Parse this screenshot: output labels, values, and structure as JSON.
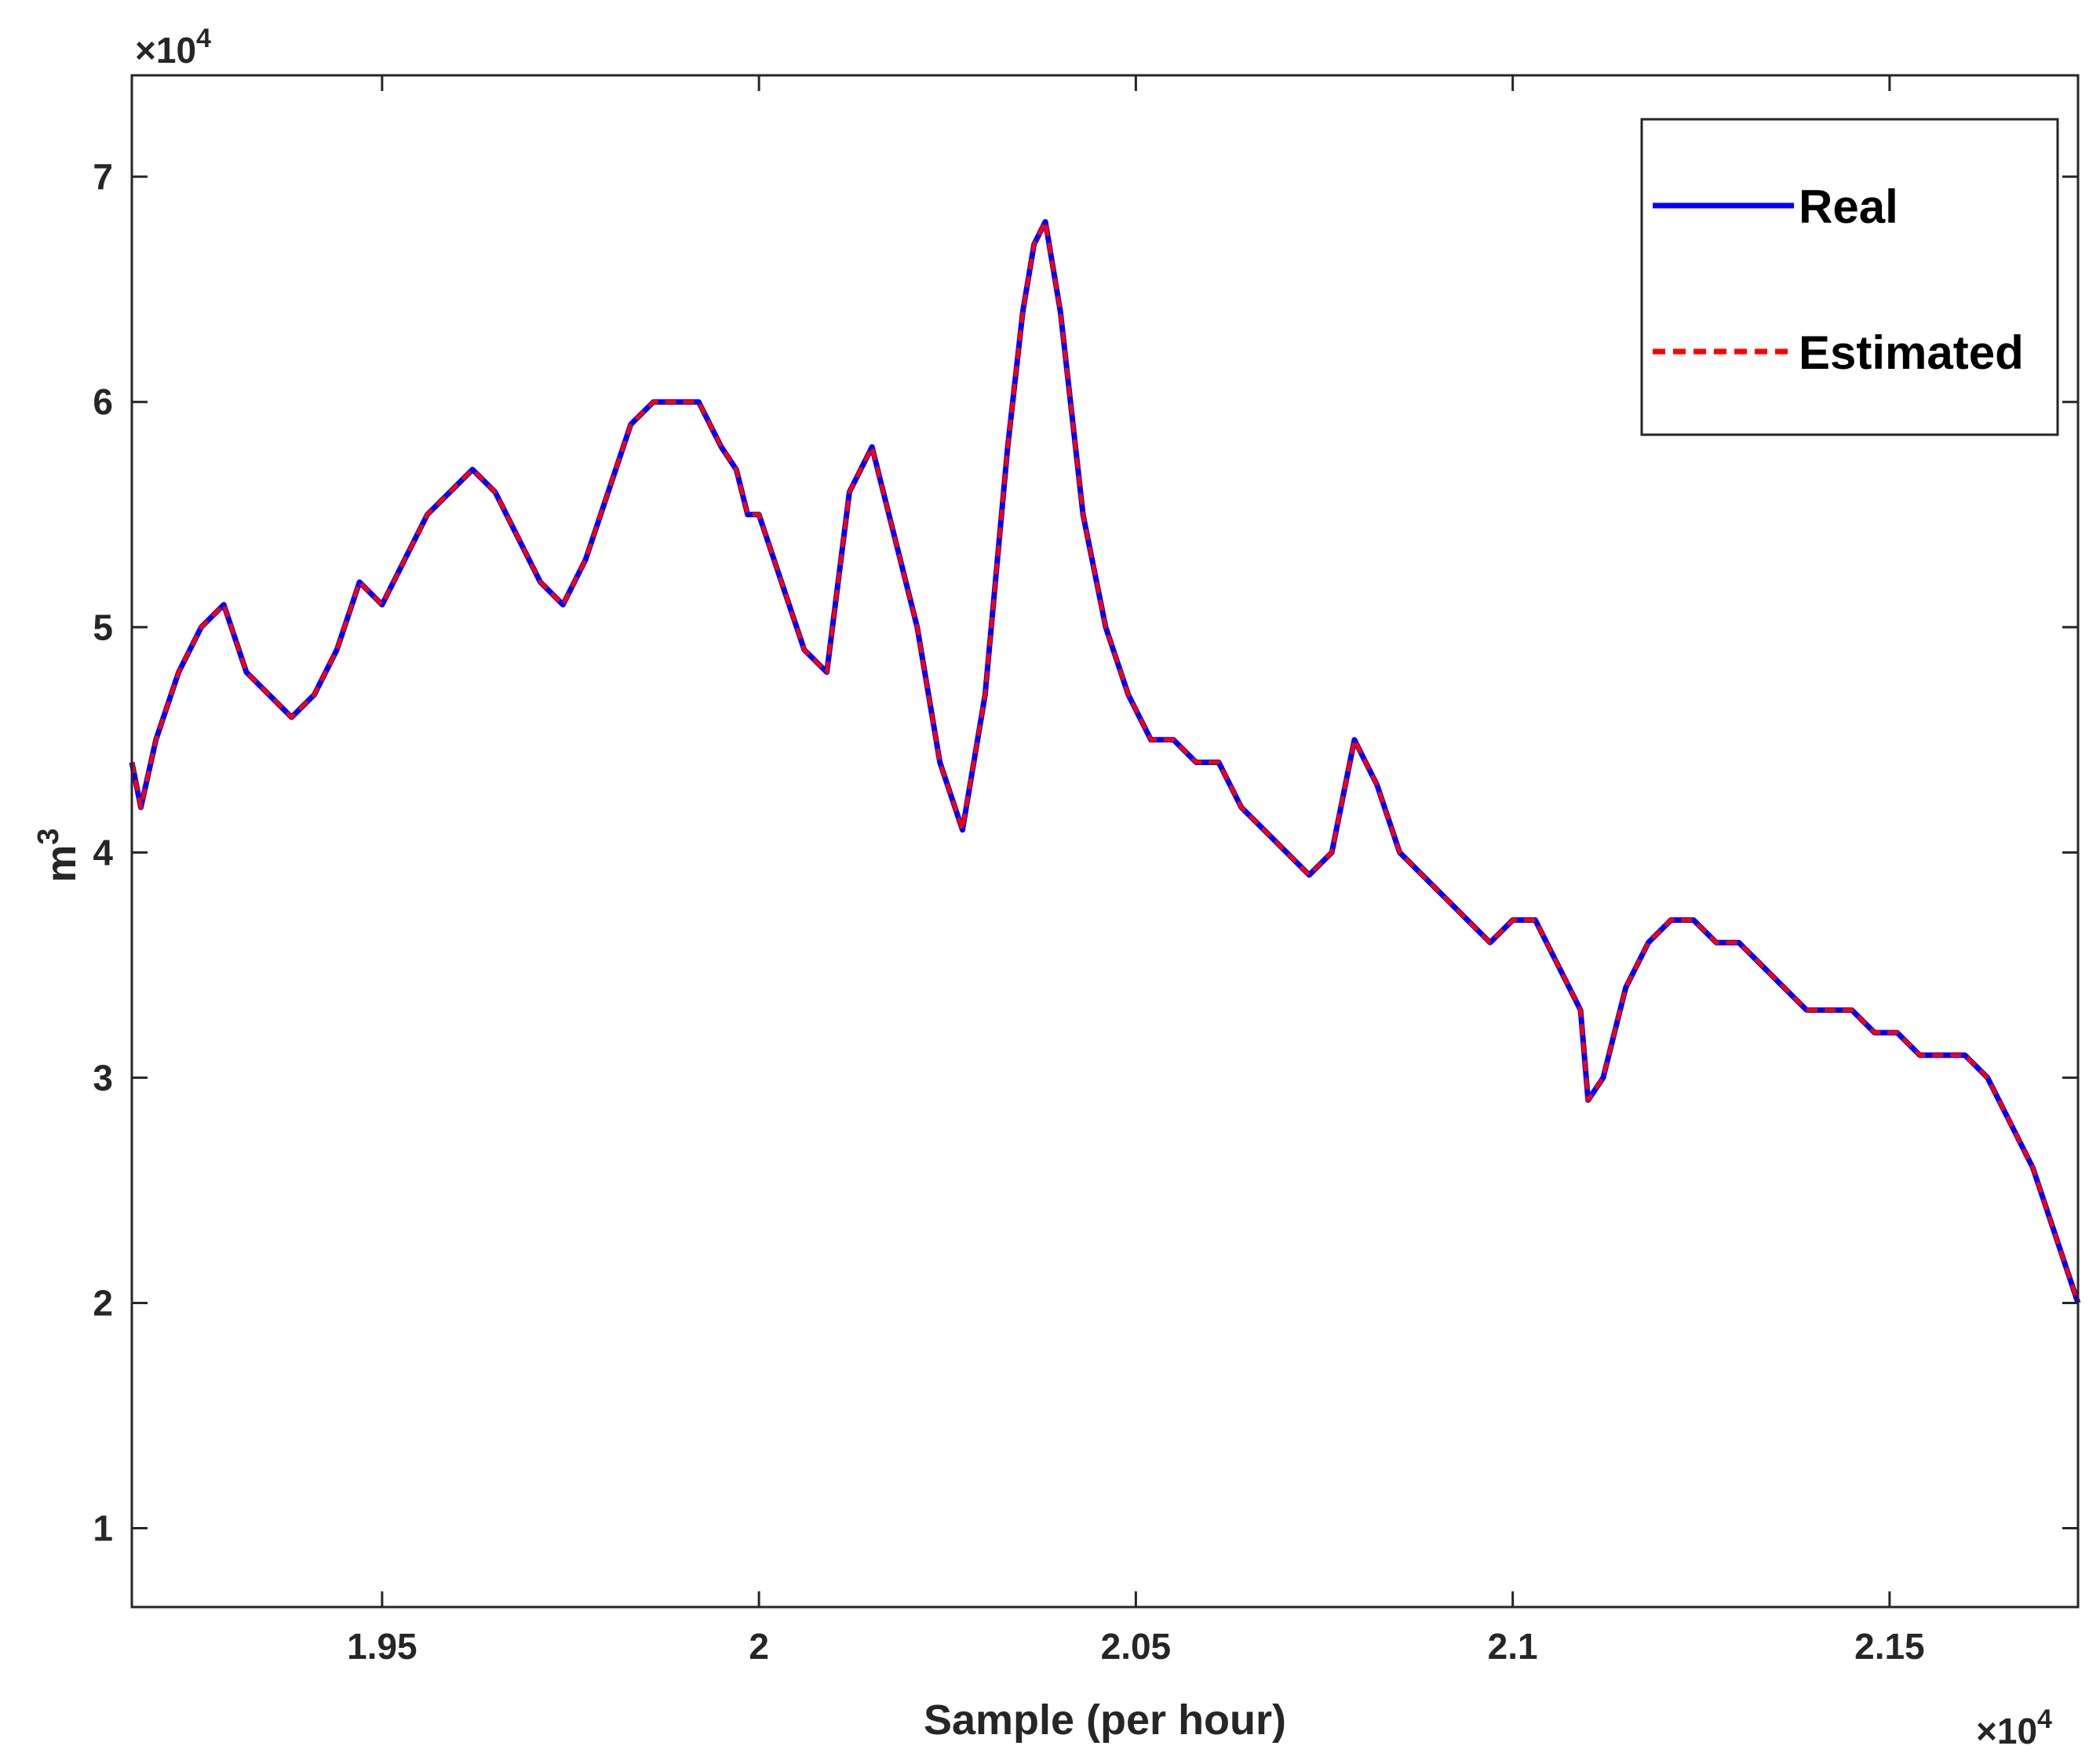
{
  "chart_data": {
    "type": "line",
    "xlabel": "Sample (per hour)",
    "ylabel": "m",
    "ylabel_superscript": "3",
    "x_exponent_label": "×10",
    "x_exponent_power": "4",
    "y_exponent_label": "×10",
    "y_exponent_power": "4",
    "xlim": [
      19168,
      21750
    ],
    "ylim": [
      6500,
      74500
    ],
    "xticks": [
      19500,
      20000,
      20500,
      21000,
      21500
    ],
    "xtick_labels": [
      "1.95",
      "2",
      "2.05",
      "2.1",
      "2.15"
    ],
    "yticks": [
      10000,
      20000,
      30000,
      40000,
      50000,
      60000,
      70000
    ],
    "ytick_labels": [
      "1",
      "2",
      "3",
      "4",
      "5",
      "6",
      "7"
    ],
    "grid": false,
    "legend_position": "top-right",
    "series": [
      {
        "name": "Real",
        "color": "#0000ff",
        "style": "solid",
        "x": [
          19168,
          19180,
          19200,
          19230,
          19260,
          19290,
          19320,
          19350,
          19380,
          19410,
          19440,
          19470,
          19500,
          19530,
          19560,
          19590,
          19620,
          19650,
          19680,
          19710,
          19740,
          19770,
          19800,
          19830,
          19860,
          19890,
          19920,
          19950,
          19970,
          19985,
          20000,
          20030,
          20060,
          20090,
          20120,
          20150,
          20180,
          20210,
          20240,
          20270,
          20300,
          20330,
          20350,
          20365,
          20380,
          20400,
          20430,
          20460,
          20490,
          20520,
          20550,
          20580,
          20610,
          20640,
          20670,
          20700,
          20730,
          20760,
          20790,
          20820,
          20850,
          20880,
          20910,
          20940,
          20970,
          21000,
          21030,
          21060,
          21090,
          21100,
          21120,
          21150,
          21180,
          21210,
          21240,
          21270,
          21300,
          21330,
          21360,
          21390,
          21420,
          21450,
          21480,
          21510,
          21540,
          21570,
          21600,
          21630,
          21660,
          21690,
          21720,
          21750
        ],
        "y": [
          44000,
          42000,
          45000,
          48000,
          50000,
          51000,
          48000,
          47000,
          46000,
          47000,
          49000,
          52000,
          51000,
          53000,
          55000,
          56000,
          57000,
          56000,
          54000,
          52000,
          51000,
          53000,
          56000,
          59000,
          60000,
          60000,
          60000,
          58000,
          57000,
          55000,
          55000,
          52000,
          49000,
          48000,
          56000,
          58000,
          54000,
          50000,
          44000,
          41000,
          47000,
          58000,
          64000,
          67000,
          68000,
          64000,
          55000,
          50000,
          47000,
          45000,
          45000,
          44000,
          44000,
          42000,
          41000,
          40000,
          39000,
          40000,
          45000,
          43000,
          40000,
          39000,
          38000,
          37000,
          36000,
          37000,
          37000,
          35000,
          33000,
          29000,
          30000,
          34000,
          36000,
          37000,
          37000,
          36000,
          36000,
          35000,
          34000,
          33000,
          33000,
          33000,
          32000,
          32000,
          31000,
          31000,
          31000,
          30000,
          28000,
          26000,
          23000,
          20000
        ]
      },
      {
        "name": "Estimated",
        "color": "#ff0000",
        "style": "dashed",
        "x": [
          19168,
          19180,
          19200,
          19230,
          19260,
          19290,
          19320,
          19350,
          19380,
          19410,
          19440,
          19470,
          19500,
          19530,
          19560,
          19590,
          19620,
          19650,
          19680,
          19710,
          19740,
          19770,
          19800,
          19830,
          19860,
          19890,
          19920,
          19950,
          19970,
          19985,
          20000,
          20030,
          20060,
          20090,
          20120,
          20150,
          20180,
          20210,
          20240,
          20270,
          20300,
          20330,
          20350,
          20365,
          20380,
          20400,
          20430,
          20460,
          20490,
          20520,
          20550,
          20580,
          20610,
          20640,
          20670,
          20700,
          20730,
          20760,
          20790,
          20820,
          20850,
          20880,
          20910,
          20940,
          20970,
          21000,
          21030,
          21060,
          21090,
          21100,
          21120,
          21150,
          21180,
          21210,
          21240,
          21270,
          21300,
          21330,
          21360,
          21390,
          21420,
          21450,
          21480,
          21510,
          21540,
          21570,
          21600,
          21630,
          21660,
          21690,
          21720,
          21750
        ],
        "y": [
          44000,
          42000,
          45000,
          48000,
          50000,
          51000,
          48000,
          47000,
          46000,
          47000,
          49000,
          52000,
          51000,
          53000,
          55000,
          56000,
          57000,
          56000,
          54000,
          52000,
          51000,
          53000,
          56000,
          59000,
          60000,
          60000,
          60000,
          58000,
          57000,
          55000,
          55000,
          52000,
          49000,
          48000,
          56000,
          58000,
          54000,
          50000,
          44000,
          41000,
          47000,
          58000,
          64000,
          67000,
          68000,
          64000,
          55000,
          50000,
          47000,
          45000,
          45000,
          44000,
          44000,
          42000,
          41000,
          40000,
          39000,
          40000,
          45000,
          43000,
          40000,
          39000,
          38000,
          37000,
          36000,
          37000,
          37000,
          35000,
          33000,
          29000,
          30000,
          34000,
          36000,
          37000,
          37000,
          36000,
          36000,
          35000,
          34000,
          33000,
          33000,
          33000,
          32000,
          32000,
          31000,
          31000,
          31000,
          30000,
          28000,
          26000,
          23000,
          20000
        ]
      }
    ]
  }
}
